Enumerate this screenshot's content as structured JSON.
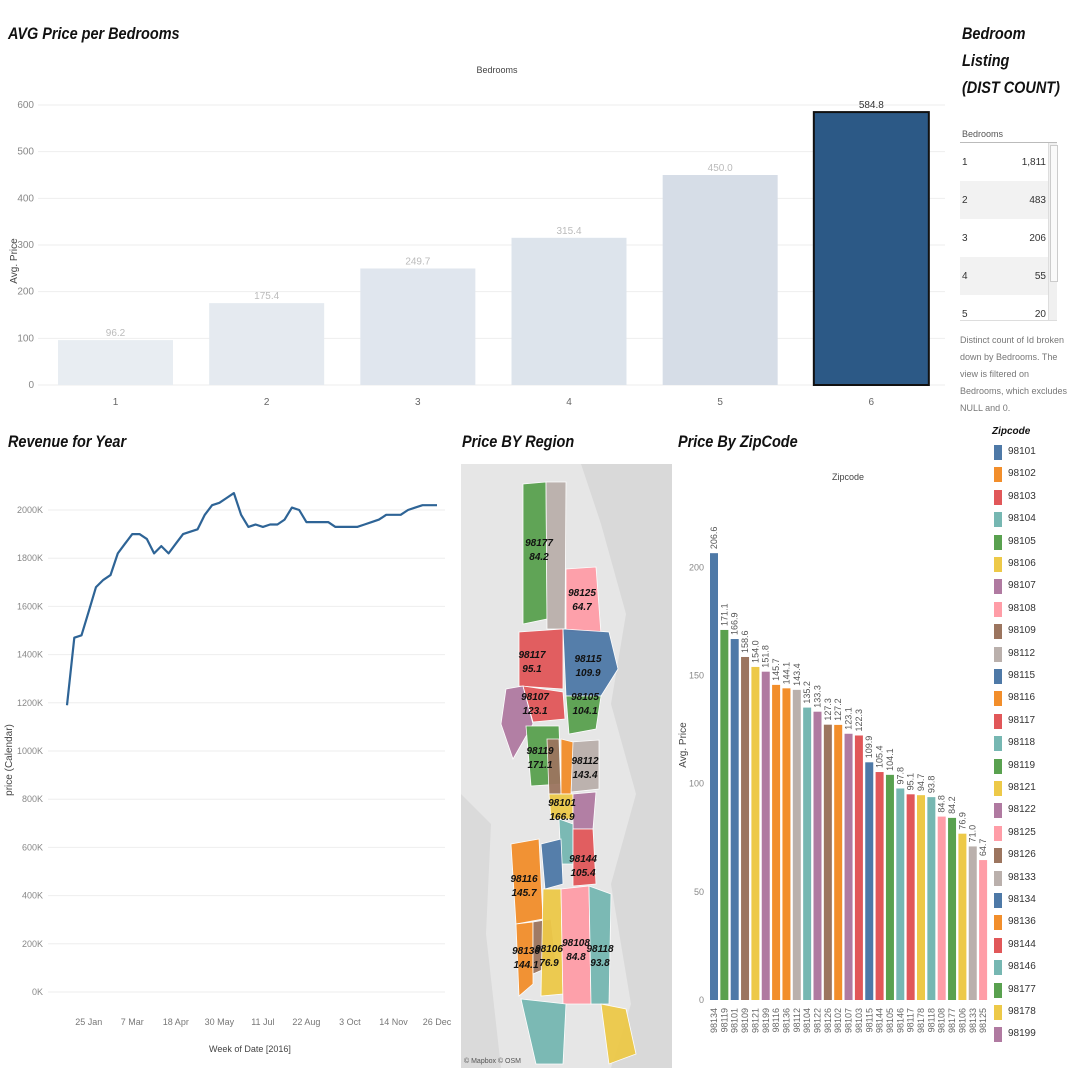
{
  "titles": {
    "bedrooms_chart": "AVG Price per Bedrooms",
    "bedroom_listing": [
      "Bedroom",
      "Listing",
      "(DIST COUNT)"
    ],
    "revenue": "Revenue for Year",
    "region": "Price BY Region",
    "zipcode": "Price By ZipCode"
  },
  "bedroom_table": {
    "header": "Bedrooms",
    "rows": [
      {
        "k": "1",
        "v": "1,811"
      },
      {
        "k": "2",
        "v": "483"
      },
      {
        "k": "3",
        "v": "206"
      },
      {
        "k": "4",
        "v": "55"
      },
      {
        "k": "5",
        "v": "20"
      }
    ],
    "note": "Distinct count of Id broken down by Bedrooms. The view is filtered on Bedrooms, which excludes NULL and 0."
  },
  "map": {
    "attribution": "© Mapbox © OSM",
    "labels": [
      {
        "zip": "98177",
        "val": "84.2"
      },
      {
        "zip": "98125",
        "val": "64.7"
      },
      {
        "zip": "98117",
        "val": "95.1"
      },
      {
        "zip": "98115",
        "val": "109.9"
      },
      {
        "zip": "98107",
        "val": "123.1"
      },
      {
        "zip": "98105",
        "val": "104.1"
      },
      {
        "zip": "98119",
        "val": "171.1"
      },
      {
        "zip": "98112",
        "val": "143.4"
      },
      {
        "zip": "98101",
        "val": "166.9"
      },
      {
        "zip": "98144",
        "val": "105.4"
      },
      {
        "zip": "98116",
        "val": "145.7"
      },
      {
        "zip": "98136",
        "val": "144.1"
      },
      {
        "zip": "98106",
        "val": "76.9"
      },
      {
        "zip": "98108",
        "val": "84.8"
      },
      {
        "zip": "98118",
        "val": "93.8"
      }
    ]
  },
  "legend": {
    "title": "Zipcode",
    "items": [
      {
        "zip": "98101",
        "color": "#4e79a7"
      },
      {
        "zip": "98102",
        "color": "#f28e2b"
      },
      {
        "zip": "98103",
        "color": "#e15759"
      },
      {
        "zip": "98104",
        "color": "#76b7b2"
      },
      {
        "zip": "98105",
        "color": "#59a14f"
      },
      {
        "zip": "98106",
        "color": "#edc948"
      },
      {
        "zip": "98107",
        "color": "#b07aa1"
      },
      {
        "zip": "98108",
        "color": "#ff9da7"
      },
      {
        "zip": "98109",
        "color": "#9c755f"
      },
      {
        "zip": "98112",
        "color": "#bab0ac"
      },
      {
        "zip": "98115",
        "color": "#4e79a7"
      },
      {
        "zip": "98116",
        "color": "#f28e2b"
      },
      {
        "zip": "98117",
        "color": "#e15759"
      },
      {
        "zip": "98118",
        "color": "#76b7b2"
      },
      {
        "zip": "98119",
        "color": "#59a14f"
      },
      {
        "zip": "98121",
        "color": "#edc948"
      },
      {
        "zip": "98122",
        "color": "#b07aa1"
      },
      {
        "zip": "98125",
        "color": "#ff9da7"
      },
      {
        "zip": "98126",
        "color": "#9c755f"
      },
      {
        "zip": "98133",
        "color": "#bab0ac"
      },
      {
        "zip": "98134",
        "color": "#4e79a7"
      },
      {
        "zip": "98136",
        "color": "#f28e2b"
      },
      {
        "zip": "98144",
        "color": "#e15759"
      },
      {
        "zip": "98146",
        "color": "#76b7b2"
      },
      {
        "zip": "98177",
        "color": "#59a14f"
      },
      {
        "zip": "98178",
        "color": "#edc948"
      },
      {
        "zip": "98199",
        "color": "#b07aa1"
      }
    ]
  },
  "chart_data": [
    {
      "type": "bar",
      "title": "AVG Price per Bedrooms",
      "xlabel": "Bedrooms",
      "ylabel": "Avg. Price",
      "categories": [
        "1",
        "2",
        "3",
        "4",
        "5",
        "6"
      ],
      "values": [
        96.2,
        175.4,
        249.7,
        315.4,
        450.0,
        584.8
      ],
      "value_labels": [
        "96.2",
        "175.4",
        "249.7",
        "315.4",
        "450.0",
        "584.8"
      ],
      "yticks": [
        "0",
        "100",
        "200",
        "300",
        "400",
        "500",
        "600"
      ],
      "ylim": [
        0,
        600
      ],
      "highlight_color": "#2c5986",
      "muted_colors": [
        "#e8edf2",
        "#e5eaf0",
        "#e0e6ee",
        "#dde4ec",
        "#d6dde7"
      ]
    },
    {
      "type": "line",
      "title": "Revenue for Year",
      "xlabel": "Week of Date [2016]",
      "ylabel": "price (Calendar)",
      "xticks": [
        "25 Jan",
        "7 Mar",
        "18 Apr",
        "30 May",
        "11 Jul",
        "22 Aug",
        "3 Oct",
        "14 Nov",
        "26 Dec"
      ],
      "yticks": [
        "0K",
        "200K",
        "400K",
        "600K",
        "800K",
        "1000K",
        "1200K",
        "1400K",
        "1600K",
        "1800K",
        "2000K"
      ],
      "ylim": [
        0,
        2000000
      ],
      "color": "#2e6496",
      "x": [
        "4 Jan",
        "11 Jan",
        "18 Jan",
        "25 Jan",
        "1 Feb",
        "8 Feb",
        "15 Feb",
        "22 Feb",
        "29 Feb",
        "7 Mar",
        "14 Mar",
        "21 Mar",
        "28 Mar",
        "4 Apr",
        "11 Apr",
        "18 Apr",
        "25 Apr",
        "2 May",
        "9 May",
        "16 May",
        "23 May",
        "30 May",
        "6 Jun",
        "13 Jun",
        "20 Jun",
        "27 Jun",
        "4 Jul",
        "11 Jul",
        "18 Jul",
        "25 Jul",
        "1 Aug",
        "8 Aug",
        "15 Aug",
        "22 Aug",
        "29 Aug",
        "5 Sep",
        "12 Sep",
        "19 Sep",
        "26 Sep",
        "3 Oct",
        "10 Oct",
        "17 Oct",
        "24 Oct",
        "31 Oct",
        "7 Nov",
        "14 Nov",
        "21 Nov",
        "28 Nov",
        "5 Dec",
        "12 Dec",
        "19 Dec",
        "26 Dec"
      ],
      "y": [
        1190000,
        1470000,
        1480000,
        1580000,
        1680000,
        1710000,
        1730000,
        1820000,
        1860000,
        1900000,
        1900000,
        1880000,
        1820000,
        1850000,
        1820000,
        1860000,
        1900000,
        1910000,
        1920000,
        1980000,
        2020000,
        2030000,
        2050000,
        2070000,
        1980000,
        1930000,
        1940000,
        1930000,
        1940000,
        1940000,
        1960000,
        2010000,
        2000000,
        1950000,
        1950000,
        1950000,
        1950000,
        1930000,
        1930000,
        1930000,
        1930000,
        1940000,
        1950000,
        1960000,
        1980000,
        1980000,
        1980000,
        2000000,
        2010000,
        2020000,
        2020000,
        2020000
      ]
    },
    {
      "type": "bar",
      "title": "Price By ZipCode",
      "xlabel": "Zipcode",
      "ylabel": "Avg. Price",
      "yticks": [
        "0",
        "50",
        "100",
        "150",
        "200"
      ],
      "ylim": [
        0,
        215
      ],
      "categories": [
        "98134",
        "98119",
        "98101",
        "98109",
        "98121",
        "98199",
        "98116",
        "98136",
        "98112",
        "98104",
        "98122",
        "98126",
        "98102",
        "98107",
        "98103",
        "98115",
        "98144",
        "98105",
        "98146",
        "98117",
        "98178",
        "98118",
        "98108",
        "98177",
        "98106",
        "98133",
        "98125"
      ],
      "values": [
        206.6,
        171.1,
        166.9,
        158.6,
        154.0,
        151.8,
        145.7,
        144.1,
        143.4,
        135.2,
        133.3,
        127.3,
        127.2,
        123.1,
        122.3,
        109.9,
        105.4,
        104.1,
        97.8,
        95.1,
        94.7,
        93.8,
        84.8,
        84.2,
        76.9,
        71.0,
        64.7
      ],
      "value_labels": [
        "206.6",
        "171.1",
        "166.9",
        "158.6",
        "154.0",
        "151.8",
        "145.7",
        "144.1",
        "143.4",
        "135.2",
        "133.3",
        "127.3",
        "127.2",
        "123.1",
        "122.3",
        "109.9",
        "105.4",
        "104.1",
        "97.8",
        "95.1",
        "94.7",
        "93.8",
        "84.8",
        "84.2",
        "76.9",
        "71.0",
        "64.7"
      ],
      "colors": [
        "#4e79a7",
        "#59a14f",
        "#4e79a7",
        "#9c755f",
        "#edc948",
        "#b07aa1",
        "#f28e2b",
        "#f28e2b",
        "#bab0ac",
        "#76b7b2",
        "#b07aa1",
        "#9c755f",
        "#f28e2b",
        "#b07aa1",
        "#e15759",
        "#4e79a7",
        "#e15759",
        "#59a14f",
        "#76b7b2",
        "#e15759",
        "#edc948",
        "#76b7b2",
        "#ff9da7",
        "#59a14f",
        "#edc948",
        "#bab0ac",
        "#ff9da7"
      ]
    }
  ]
}
